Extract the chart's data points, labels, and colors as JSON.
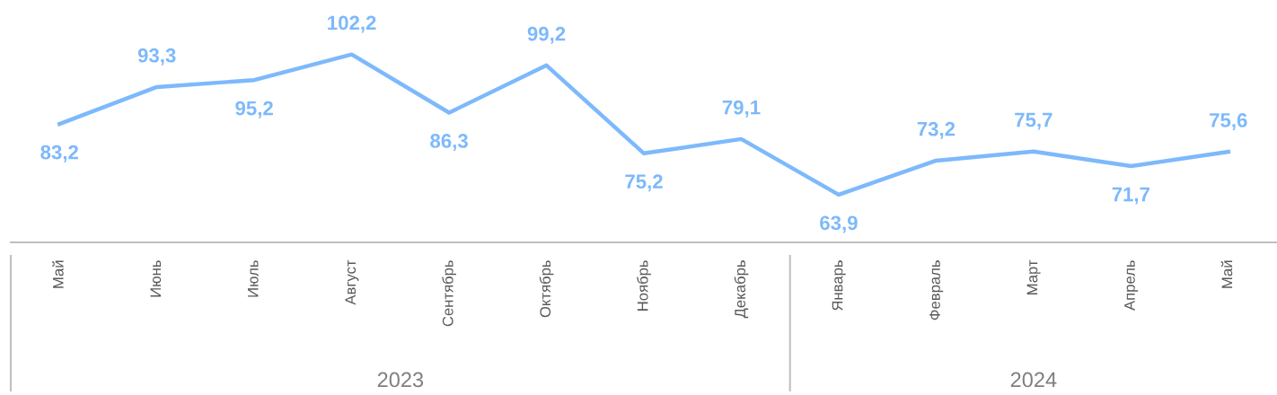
{
  "chart_data": {
    "type": "line",
    "categories": [
      "Май",
      "Июнь",
      "Июль",
      "Август",
      "Сентябрь",
      "Октябрь",
      "Ноябрь",
      "Декабрь",
      "Январь",
      "Февраль",
      "Март",
      "Апрель",
      "Май"
    ],
    "series": [
      {
        "color": "#7db9fb",
        "values": [
          83.2,
          93.3,
          95.2,
          102.2,
          86.3,
          99.2,
          75.2,
          79.1,
          63.9,
          73.2,
          75.7,
          71.7,
          75.6
        ],
        "value_labels": [
          "83,2",
          "93,3",
          "95,2",
          "102,2",
          "86,3",
          "99,2",
          "75,2",
          "79,1",
          "63,9",
          "73,2",
          "75,7",
          "71,7",
          "75,6"
        ]
      }
    ],
    "annotations": [
      "2023",
      "2024"
    ],
    "grid": false,
    "legend": false,
    "marker": "none",
    "line_style": "solid"
  }
}
